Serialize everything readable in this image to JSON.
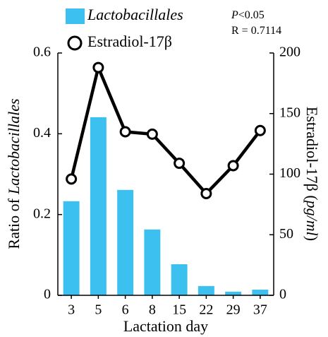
{
  "chart_data": {
    "type": "bar",
    "xlabel": "Lactation day",
    "ylabel": [
      "Ratio of",
      "Lactobacillales"
    ],
    "y2label": [
      "Estradiol-17β (",
      "pg/ml",
      ")"
    ],
    "annotations": [
      [
        "P",
        "<0.05"
      ],
      [
        "R = 0.7114"
      ]
    ],
    "categories": [
      "3",
      "5",
      "6",
      "8",
      "15",
      "22",
      "29",
      "37"
    ],
    "series": [
      {
        "name": "Lactobacillales",
        "type": "bar",
        "color": "#3cc0f0",
        "values": [
          0.233,
          0.441,
          0.261,
          0.163,
          0.077,
          0.023,
          0.009,
          0.014
        ]
      },
      {
        "name": "Estradiol-17β",
        "type": "line",
        "axis": "y2",
        "color": "#000000",
        "values": [
          96,
          188,
          135,
          133,
          109,
          84,
          107,
          136
        ]
      }
    ],
    "ylim": [
      0,
      0.6
    ],
    "yticks": [
      0,
      0.2,
      0.4,
      0.6
    ],
    "y2lim": [
      0,
      200
    ],
    "y2ticks": [
      0,
      50,
      100,
      150,
      200
    ],
    "grid": false
  }
}
